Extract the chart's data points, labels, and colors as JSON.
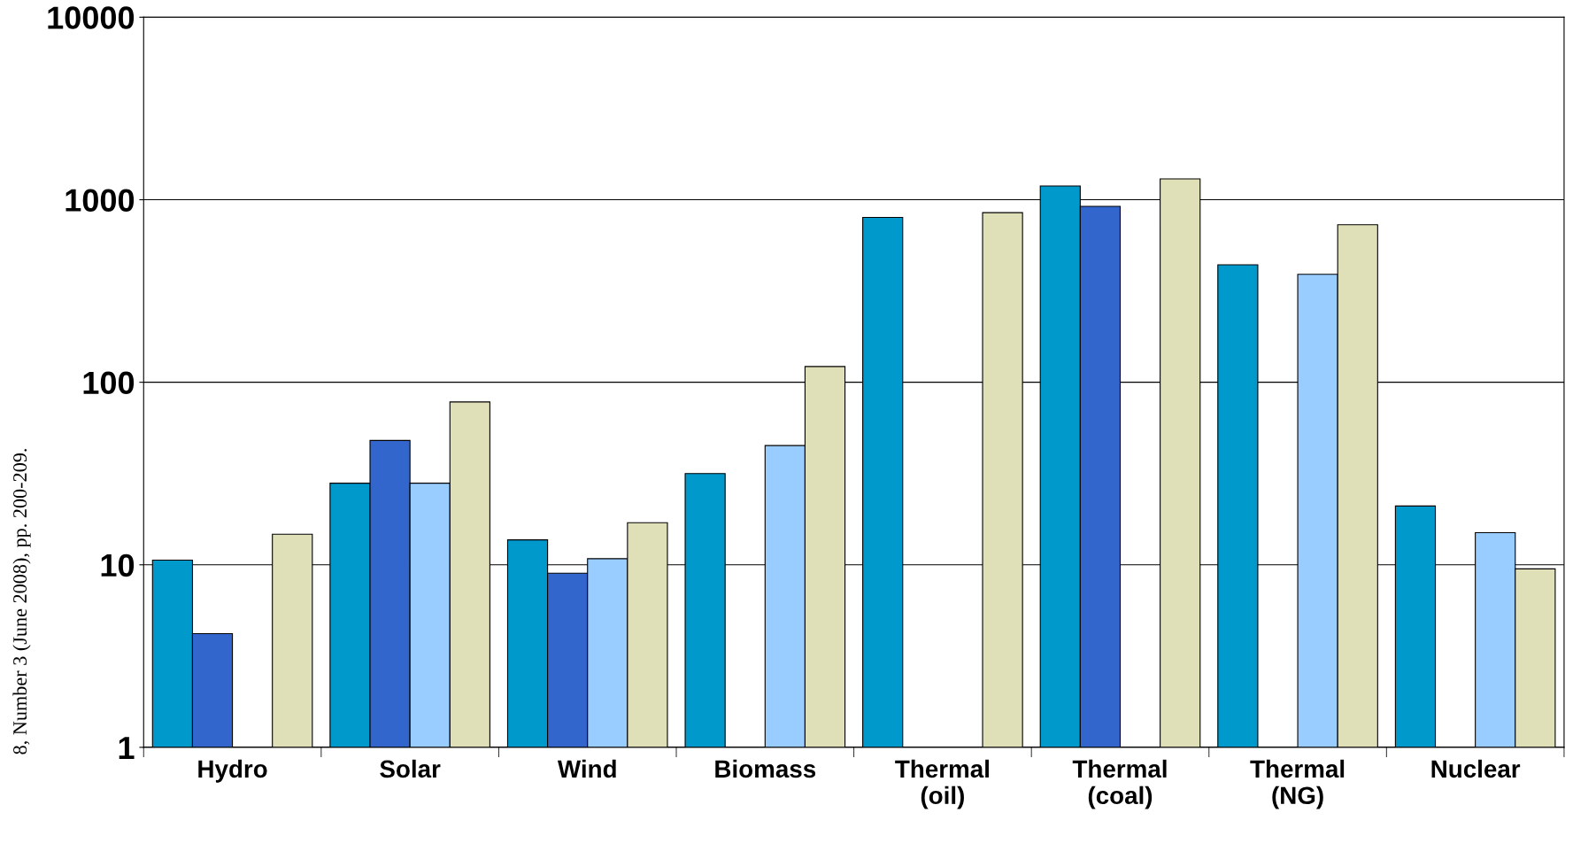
{
  "chart_data": {
    "type": "bar",
    "log": "y",
    "grid": "y",
    "categories": [
      "Hydro",
      "Solar",
      "Wind",
      "Biomass",
      "Thermal\n(oil)",
      "Thermal\n(coal)",
      "Thermal\n(NG)",
      "Nuclear"
    ],
    "series": [
      {
        "color": "#0099cc",
        "values": [
          10.6,
          28,
          13.7,
          31.6,
          800,
          1190,
          440,
          21
        ]
      },
      {
        "color": "#3366cc",
        "values": [
          4.2,
          48,
          9,
          null,
          null,
          920,
          null,
          null
        ]
      },
      {
        "color": "#99ccff",
        "values": [
          null,
          28,
          10.8,
          45,
          null,
          null,
          390,
          15
        ]
      },
      {
        "color": "#e0e0b8",
        "values": [
          14.7,
          78,
          17,
          122,
          850,
          1300,
          730,
          9.5
        ]
      }
    ],
    "ylim": [
      1,
      10000
    ],
    "yticks": [
      1,
      10,
      100,
      1000,
      10000
    ],
    "annotations": [
      "8, Number 3 (June 2008), pp. 200-209."
    ]
  }
}
